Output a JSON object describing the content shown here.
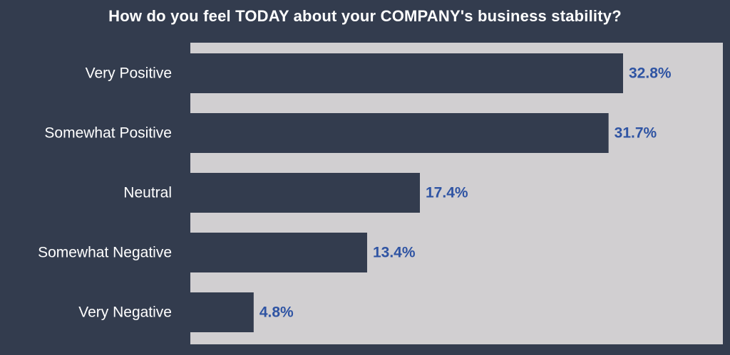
{
  "chart_data": {
    "type": "bar",
    "orientation": "horizontal",
    "title": "How do you feel TODAY about your COMPANY's business stability?",
    "categories": [
      "Very Positive",
      "Somewhat Positive",
      "Neutral",
      "Somewhat Negative",
      "Very Negative"
    ],
    "values": [
      32.8,
      31.7,
      17.4,
      13.4,
      4.8
    ],
    "value_labels": [
      "32.8%",
      "31.7%",
      "17.4%",
      "13.4%",
      "4.8%"
    ],
    "xlim": [
      0,
      40
    ],
    "grid": false,
    "legend": "none",
    "colors": {
      "background": "#333c4e",
      "plot_area": "#d1cfd1",
      "bar": "#333c4e",
      "value_label": "#2f54a3",
      "category_label": "#ffffff",
      "title": "#ffffff"
    }
  }
}
